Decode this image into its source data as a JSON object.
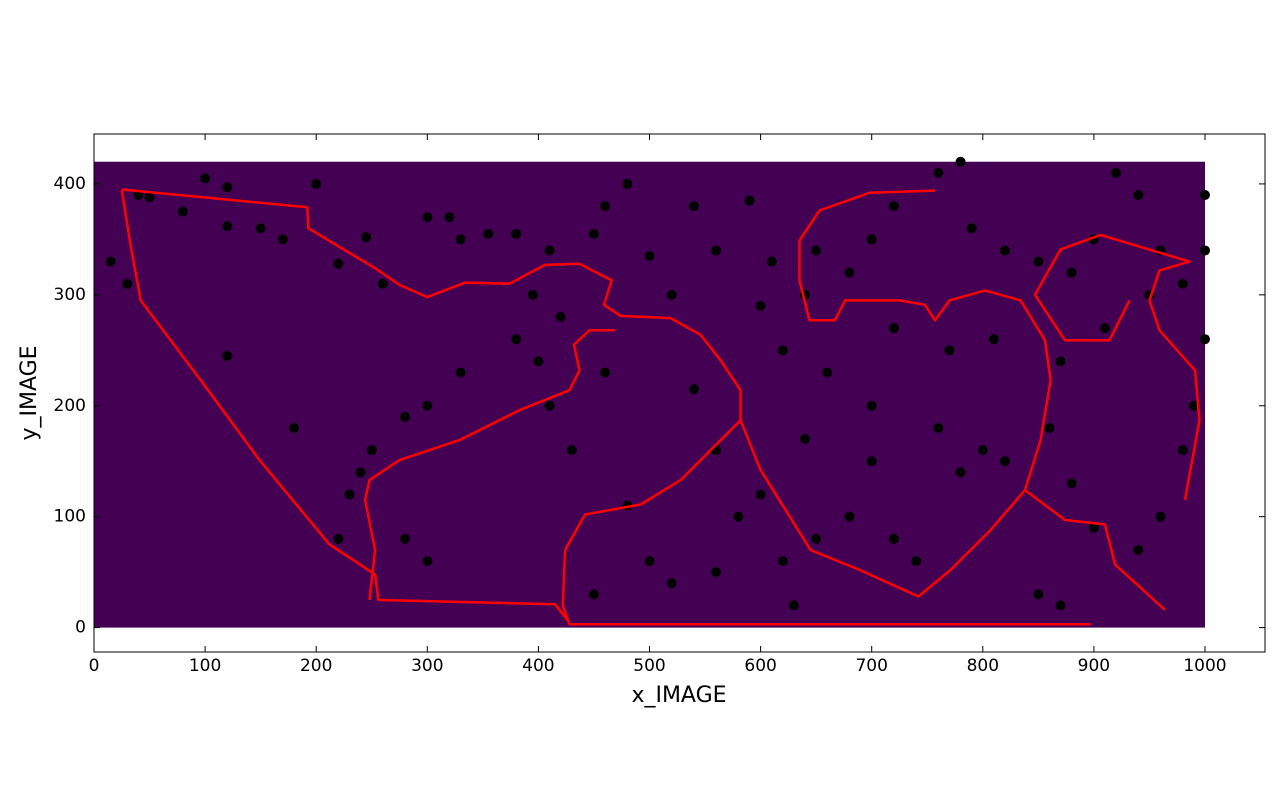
{
  "chart_data": {
    "type": "scatter",
    "x_label": "x_IMAGE",
    "y_label": "y_IMAGE",
    "xlim": [
      0,
      1054
    ],
    "ylim": [
      -22,
      445
    ],
    "xticks": [
      0,
      100,
      200,
      300,
      400,
      500,
      600,
      700,
      800,
      900,
      1000
    ],
    "yticks": [
      0,
      100,
      200,
      300,
      400
    ],
    "image_extent": {
      "x": [
        0,
        1000
      ],
      "y": [
        0,
        420
      ],
      "color": "#440154"
    },
    "series": [
      {
        "type": "line",
        "color": "#ff0000",
        "x": [
          25,
          192,
          193,
          253,
          275,
          300,
          334,
          374,
          406,
          437,
          466,
          459,
          474,
          519,
          546,
          564,
          582,
          582,
          564,
          528,
          492,
          442,
          424,
          422,
          428,
          897,
          null,
          25,
          32,
          42,
          96,
          149,
          212,
          253,
          256,
          415,
          426,
          null,
          248,
          253,
          244,
          248,
          275,
          329,
          383,
          428,
          437,
          432,
          446,
          469,
          null,
          582,
          600,
          645,
          689,
          742,
          771,
          807,
          838,
          852,
          861,
          856,
          834,
          802,
          770,
          757,
          748,
          725,
          700,
          676,
          667,
          644,
          635,
          635,
          653,
          698,
          757,
          null,
          838,
          874,
          910,
          919,
          964,
          null,
          982,
          995,
          991,
          959,
          950,
          959,
          986,
          906,
          870,
          847,
          874,
          914,
          932
        ],
        "y": [
          395,
          379,
          360,
          324,
          309,
          298,
          311,
          310,
          327,
          328,
          313,
          291,
          281,
          279,
          264,
          241,
          214,
          187,
          169,
          133,
          111,
          102,
          70,
          20,
          3,
          3,
          null,
          395,
          350,
          295,
          223,
          151,
          75,
          48,
          25,
          21,
          7,
          null,
          25,
          70,
          115,
          133,
          151,
          169,
          196,
          214,
          232,
          255,
          268,
          268,
          null,
          187,
          142,
          70,
          52,
          28,
          52,
          88,
          124,
          169,
          223,
          259,
          295,
          304,
          295,
          277,
          291,
          295,
          295,
          295,
          277,
          277,
          313,
          349,
          376,
          392,
          394,
          null,
          124,
          97,
          93,
          57,
          16,
          null,
          115,
          187,
          232,
          268,
          295,
          322,
          330,
          354,
          341,
          300,
          259,
          259,
          295
        ]
      },
      {
        "type": "scatter",
        "color": "#000000",
        "x": [
          100,
          120,
          40,
          50,
          80,
          120,
          150,
          170,
          200,
          220,
          245,
          260,
          300,
          320,
          330,
          355,
          380,
          395,
          410,
          450,
          460,
          480,
          500,
          520,
          540,
          560,
          590,
          610,
          600,
          640,
          650,
          680,
          700,
          720,
          760,
          780,
          790,
          820,
          850,
          880,
          900,
          920,
          940,
          960,
          980,
          1000,
          1000,
          1000,
          990,
          980,
          960,
          940,
          900,
          880,
          860,
          850,
          870,
          820,
          800,
          780,
          740,
          720,
          700,
          680,
          650,
          620,
          630,
          600,
          580,
          560,
          520,
          500,
          480,
          450,
          430,
          400,
          420,
          380,
          330,
          300,
          280,
          250,
          240,
          280,
          300,
          230,
          220,
          15,
          30,
          120,
          180,
          410,
          460,
          540,
          620,
          660,
          720,
          770,
          810,
          870,
          910,
          950,
          560,
          640,
          700,
          760
        ],
        "y": [
          405,
          397,
          390,
          388,
          375,
          362,
          360,
          350,
          400,
          328,
          352,
          310,
          370,
          370,
          350,
          355,
          355,
          300,
          340,
          355,
          380,
          400,
          335,
          300,
          380,
          340,
          385,
          330,
          290,
          300,
          340,
          320,
          350,
          380,
          410,
          420,
          360,
          340,
          330,
          320,
          350,
          410,
          390,
          340,
          310,
          390,
          340,
          260,
          200,
          160,
          100,
          70,
          90,
          130,
          180,
          30,
          20,
          150,
          160,
          140,
          60,
          80,
          150,
          100,
          80,
          60,
          20,
          120,
          100,
          50,
          40,
          60,
          110,
          30,
          160,
          240,
          280,
          260,
          230,
          200,
          190,
          160,
          140,
          80,
          60,
          120,
          80,
          330,
          310,
          245,
          180,
          200,
          230,
          215,
          250,
          230,
          270,
          250,
          260,
          240,
          270,
          300,
          160,
          170,
          200,
          180
        ]
      }
    ]
  }
}
